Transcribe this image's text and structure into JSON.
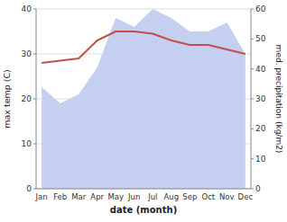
{
  "chart_data": {
    "type": "line",
    "xlabel": "date (month)",
    "ylabel": "max temp (C)",
    "y2label": "med. precipitation (kg/m2)",
    "categories": [
      "Jan",
      "Feb",
      "Mar",
      "Apr",
      "May",
      "Jun",
      "Jul",
      "Aug",
      "Sep",
      "Oct",
      "Nov",
      "Dec"
    ],
    "series": [
      {
        "type": "area",
        "axis": "y2",
        "color": "#c5cff0",
        "values": [
          34,
          28.5,
          31.5,
          40.5,
          57,
          54,
          60,
          57,
          52.5,
          52.5,
          55.5,
          45
        ]
      },
      {
        "type": "line",
        "color": "#c0504d",
        "values": [
          28,
          28.5,
          29,
          33,
          35,
          35,
          34.5,
          33,
          32,
          32,
          31,
          30
        ]
      }
    ],
    "ylim": [
      0,
      40
    ],
    "yticks": [
      0,
      10,
      20,
      30,
      40
    ],
    "y2lim": [
      0,
      60
    ],
    "y2ticks": [
      0,
      10,
      20,
      30,
      40,
      50,
      60
    ],
    "grid": true
  }
}
